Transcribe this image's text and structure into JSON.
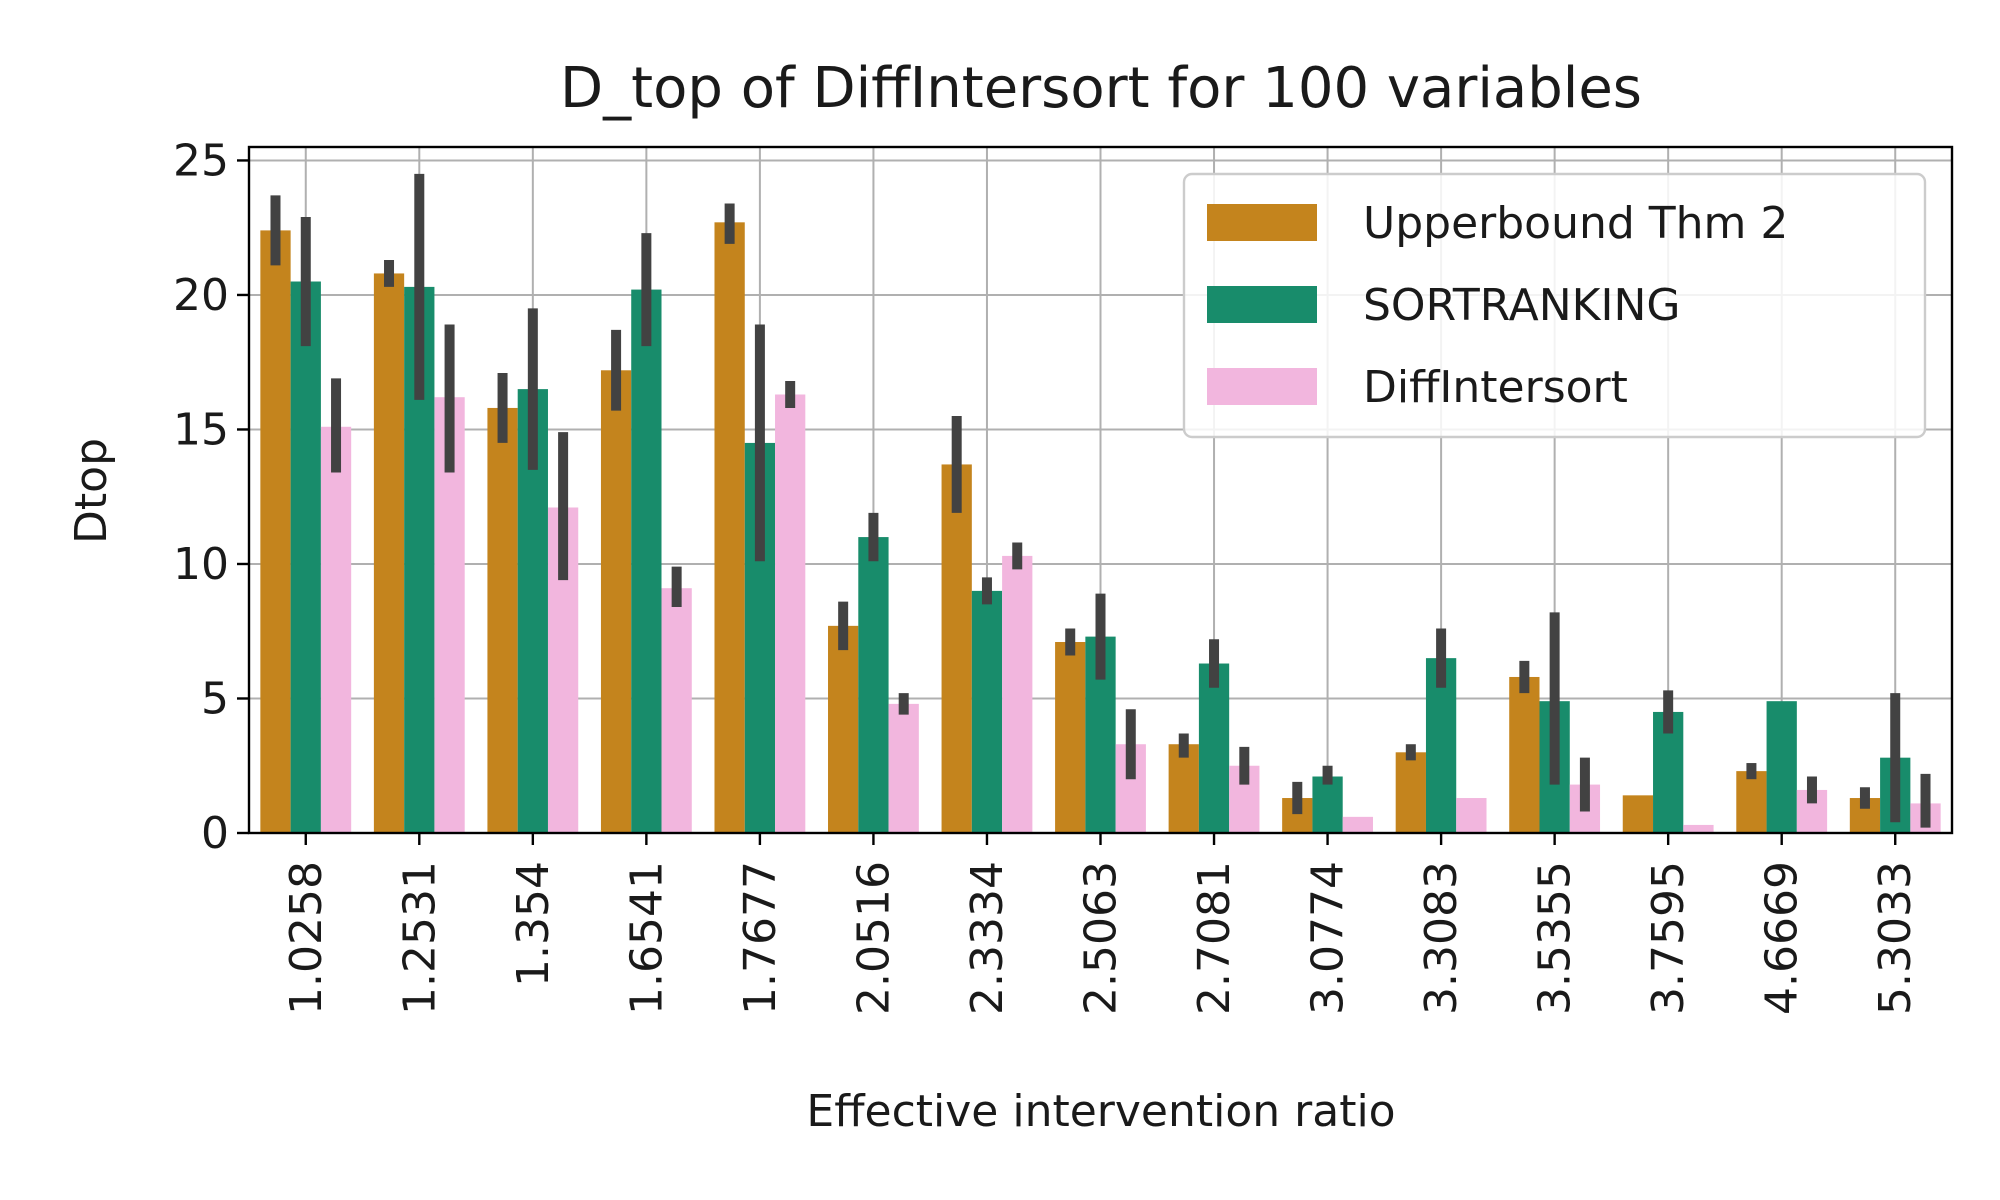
{
  "chart_data": {
    "type": "bar",
    "title": "D_top of DiffIntersort for 100 variables",
    "xlabel": "Effective intervention ratio",
    "ylabel": "Dtop",
    "ylim": [
      0,
      25.5
    ],
    "yticks": [
      0,
      5,
      10,
      15,
      20,
      25
    ],
    "grid": true,
    "legend_position": "top-right",
    "categories": [
      "1.0258",
      "1.2531",
      "1.354",
      "1.6541",
      "1.7677",
      "2.0516",
      "2.3334",
      "2.5063",
      "2.7081",
      "3.0774",
      "3.3083",
      "3.5355",
      "3.7595",
      "4.6669",
      "5.3033"
    ],
    "series": [
      {
        "name": "Upperbound Thm 2",
        "color": "#c4841d",
        "values": [
          22.4,
          20.8,
          15.8,
          17.2,
          22.7,
          7.7,
          13.7,
          7.1,
          3.3,
          1.3,
          3.0,
          5.8,
          1.4,
          2.3,
          1.3
        ],
        "err_low": [
          21.1,
          20.3,
          14.5,
          15.7,
          21.9,
          6.8,
          11.9,
          6.6,
          2.8,
          0.7,
          2.7,
          5.2,
          1.4,
          2.0,
          0.9
        ],
        "err_high": [
          23.7,
          21.3,
          17.1,
          18.7,
          23.4,
          8.6,
          15.5,
          7.6,
          3.7,
          1.9,
          3.3,
          6.4,
          1.4,
          2.6,
          1.7
        ]
      },
      {
        "name": "SORTRANKING",
        "color": "#188c6b",
        "values": [
          20.5,
          20.3,
          16.5,
          20.2,
          14.5,
          11.0,
          9.0,
          7.3,
          6.3,
          2.1,
          6.5,
          4.9,
          4.5,
          4.9,
          2.8
        ],
        "err_low": [
          18.1,
          16.1,
          13.5,
          18.1,
          10.1,
          10.1,
          8.5,
          5.7,
          5.4,
          1.8,
          5.4,
          1.8,
          3.7,
          4.9,
          0.4
        ],
        "err_high": [
          22.9,
          24.5,
          19.5,
          22.3,
          18.9,
          11.9,
          9.5,
          8.9,
          7.2,
          2.5,
          7.6,
          8.2,
          5.3,
          4.9,
          5.2
        ]
      },
      {
        "name": "DiffIntersort",
        "color": "#f2b6de",
        "values": [
          15.1,
          16.2,
          12.1,
          9.1,
          16.3,
          4.8,
          10.3,
          3.3,
          2.5,
          0.6,
          1.3,
          1.8,
          0.3,
          1.6,
          1.1
        ],
        "err_low": [
          13.4,
          13.4,
          9.4,
          8.4,
          15.8,
          4.4,
          9.8,
          2.0,
          1.8,
          0.6,
          1.3,
          0.8,
          0.3,
          1.1,
          0.2
        ],
        "err_high": [
          16.9,
          18.9,
          14.9,
          9.9,
          16.8,
          5.2,
          10.8,
          4.6,
          3.2,
          0.6,
          1.3,
          2.8,
          0.3,
          2.1,
          2.2
        ]
      }
    ]
  }
}
